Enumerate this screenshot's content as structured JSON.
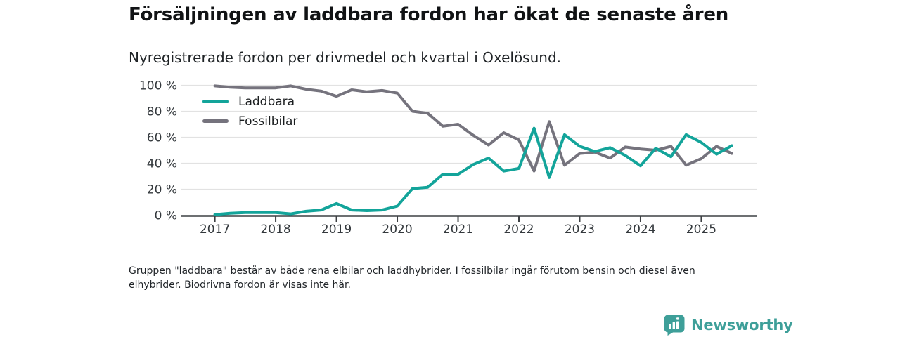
{
  "header": {
    "title": "Försäljningen av laddbara fordon har ökat de senaste åren",
    "subtitle": "Nyregistrerade fordon per drivmedel och kvartal i Oxelösund."
  },
  "chart_data": {
    "type": "line",
    "x": [
      "2017-K1",
      "2017-K2",
      "2017-K3",
      "2017-K4",
      "2018-K1",
      "2018-K2",
      "2018-K3",
      "2018-K4",
      "2019-K1",
      "2019-K2",
      "2019-K3",
      "2019-K4",
      "2020-K1",
      "2020-K2",
      "2020-K3",
      "2020-K4",
      "2021-K1",
      "2021-K2",
      "2021-K3",
      "2021-K4",
      "2022-K1",
      "2022-K2",
      "2022-K3",
      "2022-K4",
      "2023-K1",
      "2023-K2",
      "2023-K3",
      "2023-K4",
      "2024-K1",
      "2024-K2",
      "2024-K3",
      "2024-K4",
      "2025-K1",
      "2025-K2",
      "2025-K3"
    ],
    "series": [
      {
        "name": "Laddbara",
        "color": "#13a49a",
        "values": [
          0.5,
          1.5,
          2,
          2,
          2,
          1,
          3,
          4,
          9,
          4,
          3.5,
          4,
          7,
          20.5,
          21.5,
          31.5,
          31.5,
          39,
          44,
          34,
          36,
          67,
          29,
          62,
          53,
          49,
          52,
          46,
          38,
          51.5,
          45,
          62,
          56,
          47,
          53.5
        ]
      },
      {
        "name": "Fossilbilar",
        "color": "#75737d",
        "values": [
          99.5,
          98.5,
          98,
          98,
          98,
          99.5,
          97,
          95.5,
          91.5,
          96.5,
          95,
          96,
          94,
          80,
          78.5,
          68.5,
          70,
          61.5,
          54,
          63.5,
          58,
          34,
          72,
          38.5,
          47.5,
          48.5,
          44,
          52.5,
          51,
          50,
          53,
          38.5,
          43.5,
          53,
          47.5
        ]
      }
    ],
    "ylim": [
      0,
      100
    ],
    "y_ticks": [
      "0 %",
      "20 %",
      "40 %",
      "60 %",
      "80 %",
      "100 %"
    ],
    "x_ticks": [
      "2017",
      "2018",
      "2019",
      "2020",
      "2021",
      "2022",
      "2023",
      "2024",
      "2025"
    ],
    "grid": "horizontal",
    "legend_position": "inside-top-left"
  },
  "footnote": "Gruppen \"laddbara\" består av både rena elbilar och laddhybrider. I fossilbilar ingår förutom bensin och diesel även elhybrider. Biodrivna fordon är visas inte här.",
  "branding": {
    "name": "Newsworthy",
    "color": "#3e9f99"
  },
  "style": {
    "grid_color": "#e2e2e2",
    "axis_color": "#3d4043",
    "tick_label_color": "#33383c"
  }
}
